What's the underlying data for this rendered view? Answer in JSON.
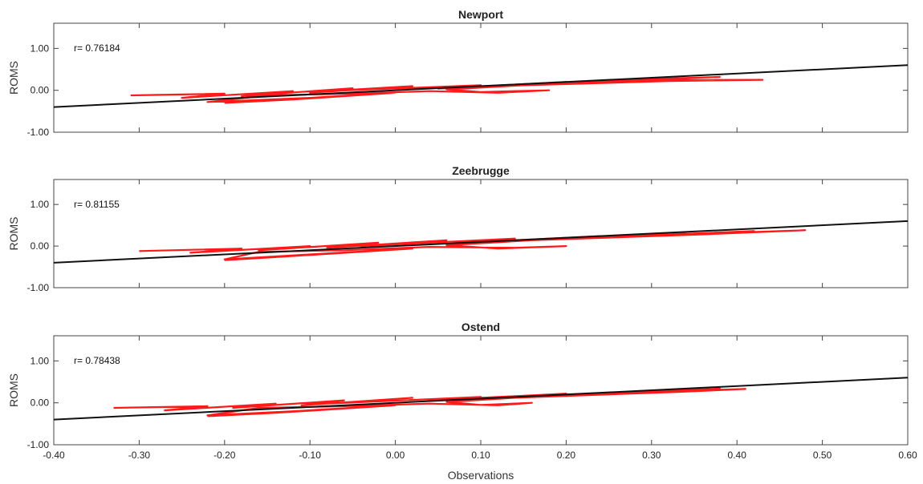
{
  "chart_data": [
    {
      "type": "scatter",
      "title": "Newport",
      "ylabel": "ROMS",
      "xlabel": "",
      "annotation": "r= 0.76184",
      "xlim": [
        -0.4,
        0.6
      ],
      "ylim": [
        -1.0,
        1.6
      ],
      "yticks": [
        "1.00",
        "0.00",
        "-1.00"
      ],
      "xticks": [],
      "grid": false,
      "fit_line": {
        "x": [
          -0.4,
          0.6
        ],
        "y": [
          -0.4,
          0.6
        ]
      },
      "series": [
        {
          "x": [
            -0.31,
            -0.2,
            -0.25,
            -0.12,
            -0.18,
            -0.05,
            -0.1,
            0.02,
            -0.08,
            0.1,
            0.05,
            0.2,
            0.12,
            0.3,
            0.18,
            0.38,
            0.25,
            0.43,
            0.32,
            0.15,
            0.06,
            0.1,
            0.18,
            0.12,
            0.04,
            -0.05,
            -0.15,
            -0.22,
            -0.1,
            0.0,
            -0.12,
            -0.2
          ],
          "y": [
            -0.12,
            -0.08,
            -0.18,
            -0.02,
            -0.14,
            0.05,
            -0.06,
            0.1,
            -0.02,
            0.12,
            0.04,
            0.2,
            0.1,
            0.28,
            0.16,
            0.32,
            0.24,
            0.25,
            0.22,
            0.12,
            0.02,
            -0.04,
            0.0,
            -0.06,
            -0.02,
            -0.08,
            -0.12,
            -0.28,
            -0.18,
            -0.06,
            -0.22,
            -0.3
          ]
        }
      ]
    },
    {
      "type": "scatter",
      "title": "Zeebrugge",
      "ylabel": "ROMS",
      "xlabel": "",
      "annotation": "r= 0.81155",
      "xlim": [
        -0.4,
        0.6
      ],
      "ylim": [
        -1.0,
        1.6
      ],
      "yticks": [
        "1.00",
        "0.00",
        "-1.00"
      ],
      "xticks": [],
      "grid": false,
      "fit_line": {
        "x": [
          -0.4,
          0.6
        ],
        "y": [
          -0.4,
          0.6
        ]
      },
      "series": [
        {
          "x": [
            -0.3,
            -0.18,
            -0.24,
            -0.1,
            -0.16,
            -0.02,
            -0.08,
            0.06,
            -0.04,
            0.14,
            0.08,
            0.24,
            0.16,
            0.34,
            0.22,
            0.42,
            0.3,
            0.48,
            0.36,
            0.16,
            0.06,
            0.12,
            0.2,
            0.14,
            0.04,
            -0.06,
            -0.16,
            -0.2,
            -0.1,
            0.02,
            -0.12,
            -0.2
          ],
          "y": [
            -0.12,
            -0.06,
            -0.16,
            0.0,
            -0.1,
            0.08,
            -0.04,
            0.14,
            0.0,
            0.18,
            0.08,
            0.24,
            0.14,
            0.3,
            0.2,
            0.36,
            0.26,
            0.38,
            0.28,
            0.14,
            0.02,
            -0.06,
            0.0,
            -0.04,
            -0.02,
            -0.1,
            -0.14,
            -0.32,
            -0.2,
            -0.06,
            -0.24,
            -0.34
          ]
        }
      ]
    },
    {
      "type": "scatter",
      "title": "Ostend",
      "ylabel": "ROMS",
      "xlabel": "Observations",
      "annotation": "r= 0.78438",
      "xlim": [
        -0.4,
        0.6
      ],
      "ylim": [
        -1.0,
        1.6
      ],
      "yticks": [
        "1.00",
        "0.00",
        "-1.00"
      ],
      "xticks": [
        "-0.40",
        "-0.30",
        "-0.20",
        "-0.10",
        "0.00",
        "0.10",
        "0.20",
        "0.30",
        "0.40",
        "0.50",
        "0.60"
      ],
      "grid": false,
      "fit_line": {
        "x": [
          -0.4,
          0.6
        ],
        "y": [
          -0.4,
          0.6
        ]
      },
      "series": [
        {
          "x": [
            -0.33,
            -0.22,
            -0.27,
            -0.14,
            -0.19,
            -0.06,
            -0.11,
            0.02,
            -0.08,
            0.1,
            0.04,
            0.2,
            0.12,
            0.3,
            0.18,
            0.38,
            0.26,
            0.41,
            0.33,
            0.14,
            0.06,
            0.1,
            0.16,
            0.12,
            0.04,
            -0.06,
            -0.16,
            -0.22,
            -0.12,
            0.0,
            -0.14,
            -0.22
          ],
          "y": [
            -0.12,
            -0.08,
            -0.18,
            -0.02,
            -0.12,
            0.06,
            -0.06,
            0.12,
            -0.02,
            0.14,
            0.06,
            0.22,
            0.12,
            0.28,
            0.18,
            0.34,
            0.24,
            0.33,
            0.26,
            0.12,
            0.02,
            -0.05,
            0.0,
            -0.06,
            -0.02,
            -0.08,
            -0.12,
            -0.3,
            -0.2,
            -0.06,
            -0.24,
            -0.32
          ]
        }
      ]
    }
  ]
}
